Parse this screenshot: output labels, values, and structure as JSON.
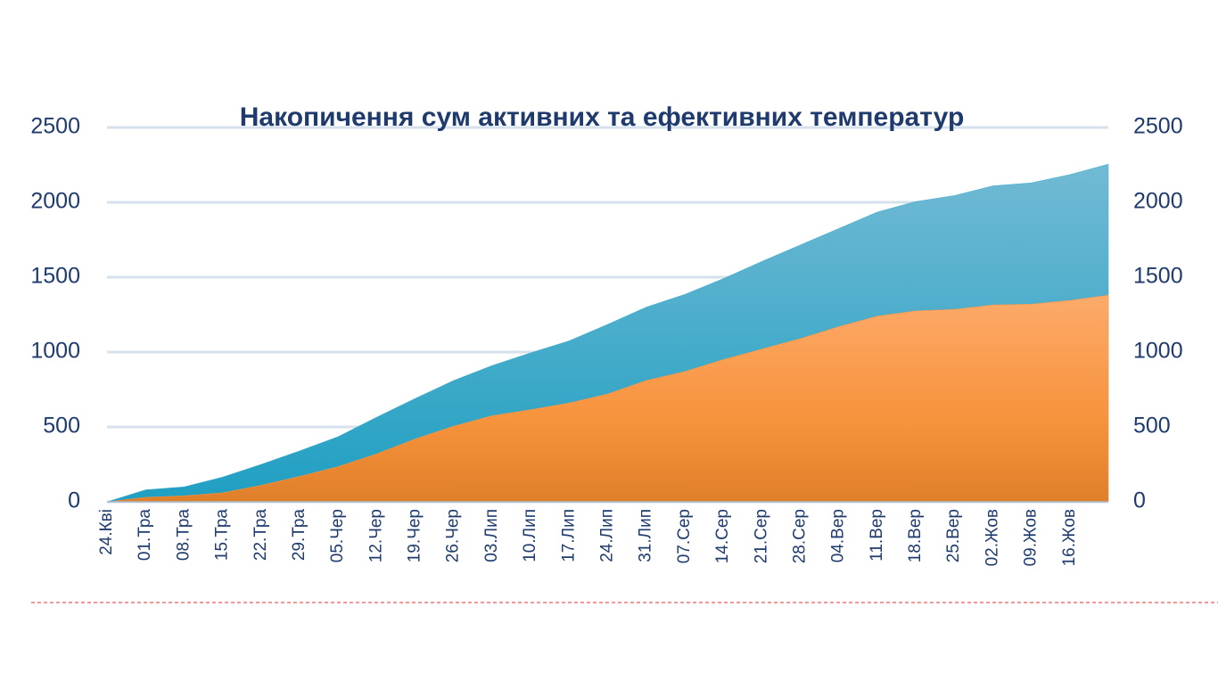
{
  "chart_data": {
    "type": "area",
    "title": "Накопичення сум активних та ефективних температур",
    "categories": [
      "24.Кві",
      "01.Тра",
      "08.Тра",
      "15.Тра",
      "22.Тра",
      "29.Тра",
      "05.Чер",
      "12.Чер",
      "19.Чер",
      "26.Чер",
      "03.Лип",
      "10.Лип",
      "17.Лип",
      "24.Лип",
      "31.Лип",
      "07.Сер",
      "14.Сер",
      "21.Сер",
      "28.Сер",
      "04.Вер",
      "11.Вер",
      "18.Вер",
      "25.Вер",
      "02.Жов",
      "09.Жов",
      "16.Жов",
      null
    ],
    "series": [
      {
        "color": "#3fadcb",
        "values": [
          0,
          80,
          100,
          165,
          250,
          340,
          435,
          565,
          690,
          810,
          910,
          995,
          1075,
          1185,
          1300,
          1385,
          1490,
          1605,
          1715,
          1825,
          1935,
          2005,
          2045,
          2110,
          2130,
          2185,
          2255
        ]
      },
      {
        "color": "#f79642",
        "values": [
          0,
          30,
          40,
          60,
          110,
          170,
          235,
          320,
          420,
          505,
          575,
          615,
          660,
          720,
          810,
          870,
          950,
          1020,
          1090,
          1170,
          1240,
          1275,
          1285,
          1315,
          1320,
          1345,
          1380
        ]
      }
    ],
    "ylim": [
      0,
      2500
    ],
    "yticks": [
      0,
      500,
      1000,
      1500,
      2000,
      2500
    ],
    "y2lim": [
      0,
      2500
    ],
    "y2ticks": [
      0,
      500,
      1000,
      1500,
      2000,
      2500
    ],
    "grid": true
  }
}
